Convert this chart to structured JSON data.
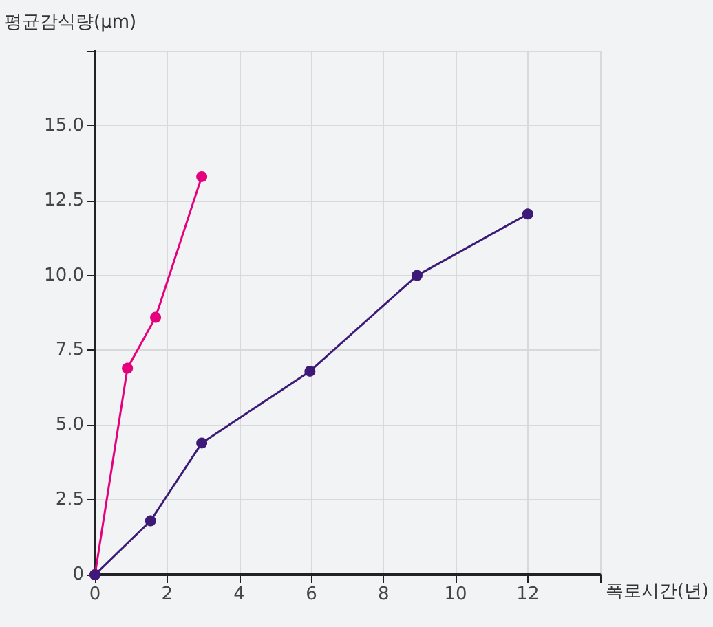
{
  "chart_data": {
    "type": "line",
    "ylabel": "평균감식량(μm)",
    "xlabel": "폭로시간(년)",
    "series": [
      {
        "color": "#e5007e",
        "x": [
          0,
          0.9,
          1.68,
          2.96
        ],
        "values": [
          0,
          6.9,
          8.6,
          13.3
        ]
      },
      {
        "color": "#3d1a78",
        "x": [
          0,
          1.54,
          2.96,
          5.96,
          8.93,
          12
        ],
        "values": [
          0,
          1.8,
          4.4,
          6.8,
          10,
          12.05
        ]
      }
    ],
    "xlim": [
      0,
      14
    ],
    "xticks": [
      0,
      2,
      4,
      6,
      8,
      10,
      12,
      {
        "value": 14,
        "label": null
      }
    ],
    "ylim": [
      0,
      17.5
    ],
    "yticks": [
      0,
      2.5,
      {
        "value": 5,
        "label": "5.0"
      },
      7.5,
      {
        "value": 10,
        "label": "10.0"
      },
      12.5,
      {
        "value": 15,
        "label": "15.0"
      },
      {
        "value": 17.5,
        "label": null
      }
    ],
    "grid": true,
    "marker": "circle",
    "line_style": "solid"
  }
}
